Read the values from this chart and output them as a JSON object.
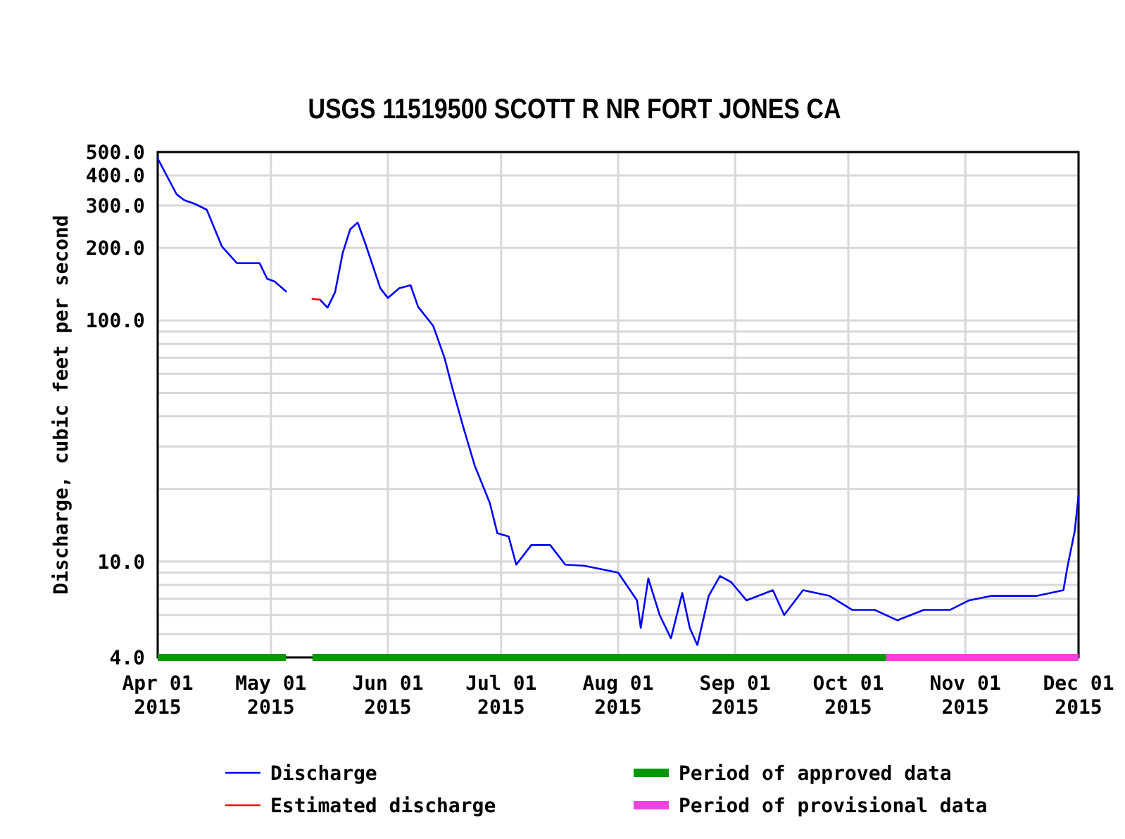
{
  "chart_data": {
    "type": "line",
    "title": "USGS 11519500 SCOTT R NR FORT JONES CA",
    "ylabel": "Discharge, cubic feet per second",
    "log": true,
    "grid": true,
    "legend": "bottom",
    "marker": "none",
    "line_style": "solid",
    "xlim": [
      "2015-04-01",
      "2015-12-01"
    ],
    "xticks": [
      {
        "value": "2015-04-01",
        "label": "Apr 01\n2015"
      },
      {
        "value": "2015-05-01",
        "label": "May 01\n2015"
      },
      {
        "value": "2015-06-01",
        "label": "Jun 01\n2015"
      },
      {
        "value": "2015-07-01",
        "label": "Jul 01\n2015"
      },
      {
        "value": "2015-08-01",
        "label": "Aug 01\n2015"
      },
      {
        "value": "2015-09-01",
        "label": "Sep 01\n2015"
      },
      {
        "value": "2015-10-01",
        "label": "Oct 01\n2015"
      },
      {
        "value": "2015-11-01",
        "label": "Nov 01\n2015"
      },
      {
        "value": "2015-12-01",
        "label": "Dec 01\n2015"
      }
    ],
    "ylim": [
      4,
      500
    ],
    "yticks": [
      {
        "value": 4,
        "label": "4.0"
      },
      {
        "value": 5,
        "label": null
      },
      {
        "value": 6,
        "label": null
      },
      {
        "value": 7,
        "label": null
      },
      {
        "value": 8,
        "label": null
      },
      {
        "value": 9,
        "label": null
      },
      {
        "value": 10,
        "label": "10.0"
      },
      {
        "value": 20,
        "label": null
      },
      {
        "value": 30,
        "label": null
      },
      {
        "value": 40,
        "label": null
      },
      {
        "value": 50,
        "label": null
      },
      {
        "value": 60,
        "label": null
      },
      {
        "value": 70,
        "label": null
      },
      {
        "value": 80,
        "label": null
      },
      {
        "value": 90,
        "label": null
      },
      {
        "value": 100,
        "label": "100.0"
      },
      {
        "value": 200,
        "label": "200.0"
      },
      {
        "value": 300,
        "label": "300.0"
      },
      {
        "value": 400,
        "label": "400.0"
      },
      {
        "value": 500,
        "label": "500.0"
      }
    ],
    "series": [
      {
        "name": "Discharge",
        "color": "#0000ff",
        "x": [
          "2015-04-01",
          "2015-04-03",
          "2015-04-06",
          "2015-04-08",
          "2015-04-11",
          "2015-04-14",
          "2015-04-16",
          "2015-04-18",
          "2015-04-22",
          "2015-04-28",
          "2015-04-30",
          "2015-05-02",
          "2015-05-05",
          null,
          "2015-05-14",
          "2015-05-16",
          "2015-05-18",
          "2015-05-20",
          "2015-05-22",
          "2015-05-24",
          "2015-05-26",
          "2015-05-30",
          "2015-06-01",
          "2015-06-04",
          "2015-06-07",
          "2015-06-09",
          "2015-06-13",
          "2015-06-16",
          "2015-06-18",
          "2015-06-21",
          "2015-06-24",
          "2015-06-28",
          "2015-06-30",
          "2015-07-03",
          "2015-07-05",
          "2015-07-09",
          "2015-07-14",
          "2015-07-18",
          "2015-07-23",
          "2015-07-26",
          "2015-08-01",
          "2015-08-06",
          "2015-08-07",
          "2015-08-09",
          "2015-08-12",
          "2015-08-15",
          "2015-08-18",
          "2015-08-20",
          "2015-08-22",
          "2015-08-25",
          "2015-08-28",
          "2015-08-31",
          "2015-09-04",
          "2015-09-11",
          "2015-09-14",
          "2015-09-19",
          "2015-09-26",
          "2015-10-02",
          "2015-10-08",
          "2015-10-14",
          "2015-10-21",
          "2015-10-28",
          "2015-11-02",
          "2015-11-08",
          "2015-11-14",
          "2015-11-20",
          "2015-11-27",
          "2015-11-28",
          "2015-11-30",
          "2015-12-01"
        ],
        "values": [
          470,
          410,
          334,
          316,
          304,
          288,
          242,
          203,
          173,
          173,
          149,
          145,
          132,
          null,
          122,
          113,
          131,
          190,
          239,
          255,
          209,
          136,
          124,
          136,
          140,
          114,
          95,
          70,
          53,
          36,
          25,
          17.5,
          13.1,
          12.7,
          9.7,
          11.7,
          11.7,
          9.7,
          9.6,
          9.4,
          9.0,
          6.9,
          5.3,
          8.5,
          6.0,
          4.8,
          7.4,
          5.3,
          4.5,
          7.2,
          8.7,
          8.2,
          6.9,
          7.6,
          6.0,
          7.6,
          7.2,
          6.3,
          6.3,
          5.7,
          6.3,
          6.3,
          6.9,
          7.2,
          7.2,
          7.2,
          7.6,
          9.4,
          13.4,
          18.8
        ]
      },
      {
        "name": "Estimated discharge",
        "color": "#ff0000",
        "x": [
          "2015-05-12",
          "2015-05-14"
        ],
        "values": [
          123,
          122
        ]
      },
      {
        "name": "Period of approved data",
        "color": "#009900",
        "x": [
          "2015-04-01",
          "2015-05-05",
          null,
          "2015-05-12",
          "2015-10-11"
        ],
        "values": [
          4,
          4,
          null,
          4,
          4
        ]
      },
      {
        "name": "Period of provisional data",
        "color": "#ee44dd",
        "x": [
          "2015-10-11",
          "2015-12-01"
        ],
        "values": [
          4,
          4
        ]
      }
    ]
  }
}
